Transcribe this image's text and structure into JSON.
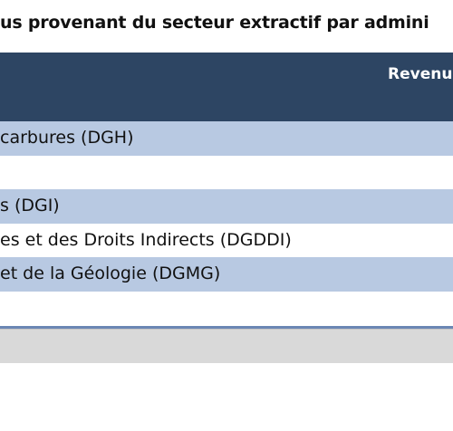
{
  "title": "us provenant du secteur extractif par admini",
  "table": {
    "header": {
      "revenue_column": "Revenu"
    },
    "rows": [
      {
        "label": "carbures (DGH)"
      },
      {
        "label": ""
      },
      {
        "label": "s (DGI)"
      },
      {
        "label": "es et des Droits Indirects (DGDDI)"
      },
      {
        "label": "et de la Géologie (DGMG)"
      },
      {
        "label": ""
      }
    ],
    "total": {
      "label": ""
    }
  },
  "colors": {
    "header_bg": "#2d4563",
    "row_alt_bg": "#b8c9e2",
    "rule": "#6b87b4",
    "total_bg": "#d9d9d9"
  }
}
